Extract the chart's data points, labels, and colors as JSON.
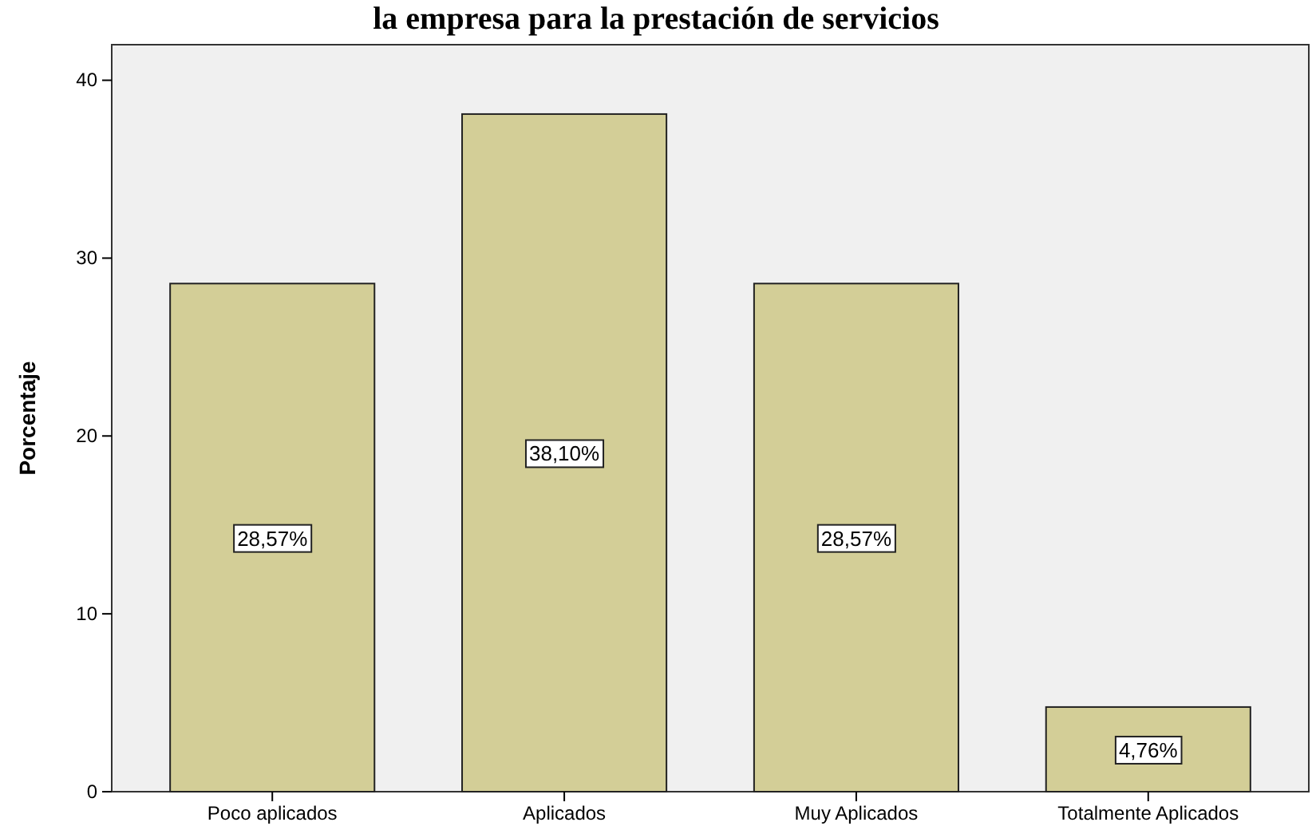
{
  "chart_data": {
    "type": "bar",
    "title": "la empresa para la prestación de servicios",
    "ylabel": "Porcentaje",
    "categories": [
      "Poco aplicados",
      "Aplicados",
      "Muy Aplicados",
      "Totalmente Aplicados"
    ],
    "values": [
      28.57,
      38.1,
      28.57,
      4.76
    ],
    "value_labels": [
      "28,57%",
      "38,10%",
      "28,57%",
      "4,76%"
    ],
    "color": "#d3ce97",
    "ylim": [
      0,
      42
    ],
    "yticks": [
      0,
      10,
      20,
      30,
      40
    ],
    "grid": false
  }
}
